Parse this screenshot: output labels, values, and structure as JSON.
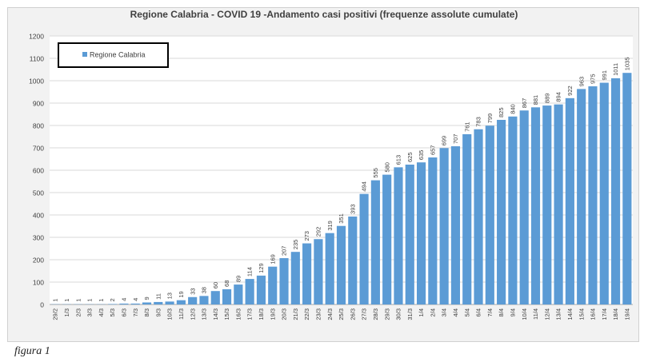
{
  "figure_caption": "figura 1",
  "colors": {
    "bar": "#5b9bd5",
    "plot_bg": "#ffffff",
    "frame_bg": "#f2f2f2",
    "grid": "#d9d9d9",
    "text": "#404040"
  },
  "chart_data": {
    "type": "bar",
    "title": "Regione Calabria - COVID 19 -Andamento casi positivi (frequenze assolute cumulate)",
    "xlabel": "",
    "ylabel": "",
    "ylim": [
      0,
      1200
    ],
    "yticks": [
      0,
      100,
      200,
      300,
      400,
      500,
      600,
      700,
      800,
      900,
      1000,
      1100,
      1200
    ],
    "grid": true,
    "legend": {
      "position": "top-left",
      "entries": [
        "Regione Calabria"
      ]
    },
    "categories": [
      "29/2",
      "1/3",
      "2/3",
      "3/3",
      "4/3",
      "5/3",
      "6/3",
      "7/3",
      "8/3",
      "9/3",
      "10/3",
      "11/3",
      "12/3",
      "13/3",
      "14/3",
      "15/3",
      "16/3",
      "17/3",
      "18/3",
      "19/3",
      "20/3",
      "21/3",
      "22/3",
      "23/3",
      "24/3",
      "25/3",
      "26/3",
      "27/3",
      "28/3",
      "29/3",
      "30/3",
      "31/3",
      "1/4",
      "2/4",
      "3/4",
      "4/4",
      "5/4",
      "6/4",
      "7/4",
      "8/4",
      "9/4",
      "10/4",
      "11/4",
      "12/4",
      "13/4",
      "14/4",
      "15/4",
      "16/4",
      "17/4",
      "18/4",
      "19/4"
    ],
    "series": [
      {
        "name": "Regione Calabria",
        "values": [
          1,
          1,
          1,
          1,
          1,
          2,
          4,
          4,
          9,
          11,
          13,
          19,
          33,
          38,
          60,
          68,
          89,
          114,
          129,
          169,
          207,
          235,
          273,
          292,
          319,
          351,
          393,
          494,
          555,
          580,
          613,
          625,
          635,
          657,
          699,
          707,
          761,
          783,
          799,
          825,
          840,
          867,
          881,
          889,
          894,
          922,
          963,
          975,
          991,
          1011,
          1035
        ]
      }
    ]
  }
}
